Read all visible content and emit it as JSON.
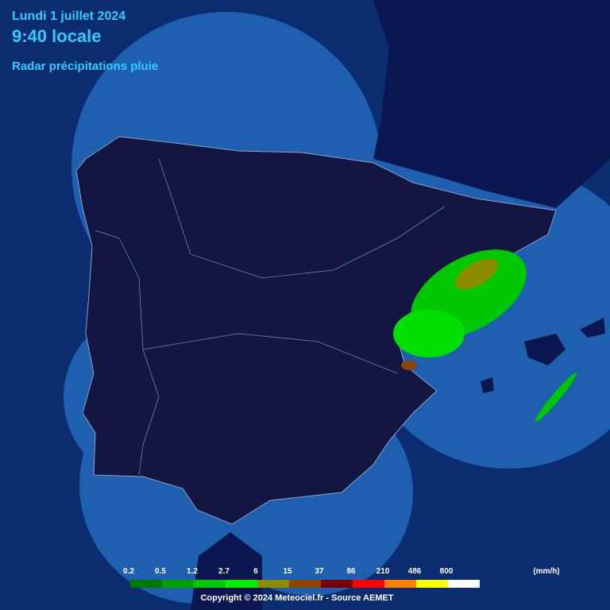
{
  "header": {
    "date": "Lundi 1 juillet 2024",
    "time": "9:40 locale",
    "product": "Radar précipitations pluie"
  },
  "legend": {
    "items": [
      {
        "label": "0.2",
        "color": "#007800"
      },
      {
        "label": "0.5",
        "color": "#00a000"
      },
      {
        "label": "1.2",
        "color": "#00c800"
      },
      {
        "label": "2.7",
        "color": "#00f000"
      },
      {
        "label": "6",
        "color": "#8c8c00"
      },
      {
        "label": "15",
        "color": "#8c4600"
      },
      {
        "label": "37",
        "color": "#780000"
      },
      {
        "label": "86",
        "color": "#ff0000"
      },
      {
        "label": "210",
        "color": "#ff8000"
      },
      {
        "label": "486",
        "color": "#ffff00"
      },
      {
        "label": "800",
        "color": "#ffffff"
      }
    ],
    "unit": "(mm/h)"
  },
  "footer": {
    "copyright": "Copyright © 2024 Meteociel.fr - Source AEMET"
  }
}
